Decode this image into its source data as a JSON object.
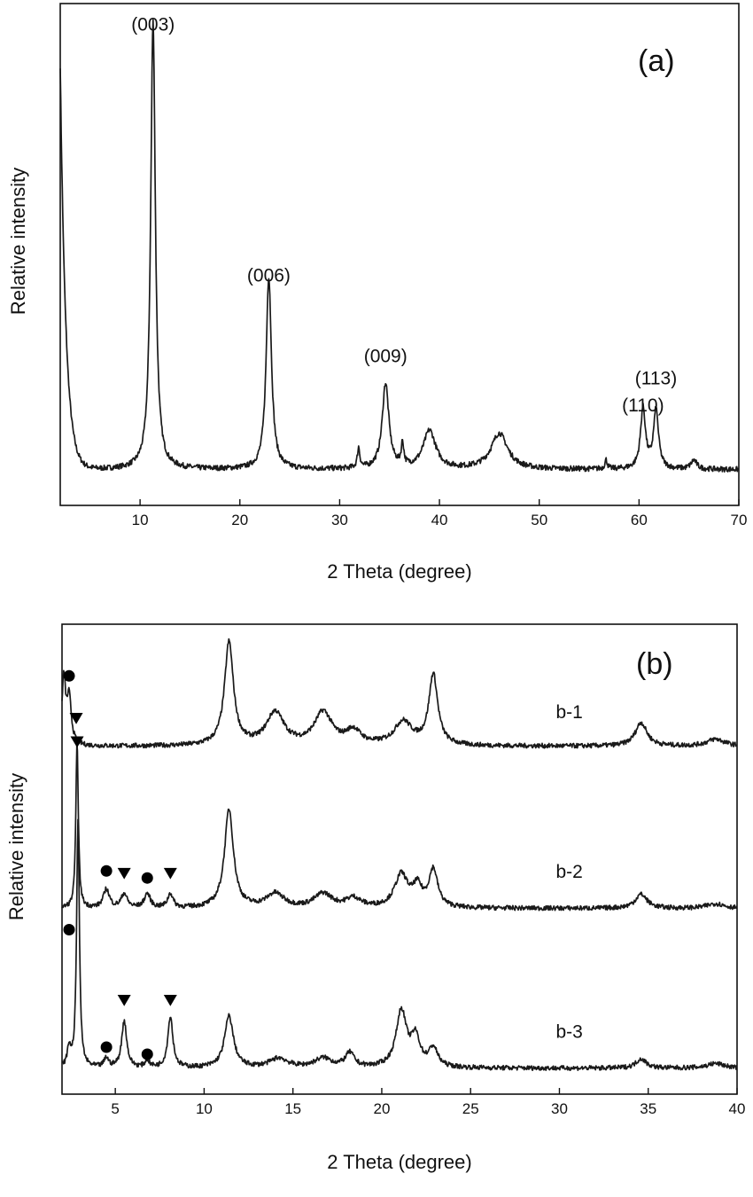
{
  "chart_data": [
    {
      "type": "line",
      "panel_label": "(a)",
      "xlabel": "2 Theta (degree)",
      "ylabel": "Relative intensity",
      "xlim": [
        2,
        70
      ],
      "ylim": [
        0,
        1.12
      ],
      "x_ticks": [
        10,
        20,
        30,
        40,
        50,
        60,
        70
      ],
      "y_ticks_shown": false,
      "series": [
        {
          "baseline": 0.08,
          "low_angle_tail": {
            "amp": 0.9,
            "decay": 0.55
          },
          "peaks": [
            {
              "x": 11.3,
              "y": 1.0,
              "width": 0.28
            },
            {
              "x": 22.9,
              "y": 0.43,
              "width": 0.32
            },
            {
              "x": 31.9,
              "y": 0.045,
              "width": 0.15
            },
            {
              "x": 34.6,
              "y": 0.19,
              "width": 0.4
            },
            {
              "x": 36.3,
              "y": 0.05,
              "width": 0.15
            },
            {
              "x": 39.0,
              "y": 0.085,
              "width": 0.75
            },
            {
              "x": 46.0,
              "y": 0.08,
              "width": 1.0
            },
            {
              "x": 56.7,
              "y": 0.02,
              "width": 0.15
            },
            {
              "x": 60.4,
              "y": 0.135,
              "width": 0.3
            },
            {
              "x": 61.7,
              "y": 0.13,
              "width": 0.3
            },
            {
              "x": 65.5,
              "y": 0.02,
              "width": 0.35
            }
          ]
        }
      ],
      "annotations": [
        {
          "text": "(003)",
          "x": 11.3,
          "y": 1.06
        },
        {
          "text": "(006)",
          "x": 22.9,
          "y": 0.5
        },
        {
          "text": "(009)",
          "x": 34.6,
          "y": 0.32
        },
        {
          "text": "(113)",
          "x": 61.7,
          "y": 0.27
        },
        {
          "text": "(110)",
          "x": 60.4,
          "y": 0.21
        }
      ]
    },
    {
      "type": "line",
      "panel_label": "(b)",
      "xlabel": "2 Theta (degree)",
      "ylabel": "Relative intensity",
      "xlim": [
        2,
        40
      ],
      "ylim": [
        0,
        1
      ],
      "x_ticks": [
        5,
        10,
        15,
        20,
        25,
        30,
        35,
        40
      ],
      "y_ticks_shown": false,
      "series": [
        {
          "name": "b-1",
          "offset": 0.74,
          "peaks": [
            {
              "x": 2.1,
              "y": 0.14,
              "width": 0.12
            },
            {
              "x": 2.4,
              "y": 0.1,
              "width": 0.15
            },
            {
              "x": 11.4,
              "y": 0.22,
              "width": 0.3
            },
            {
              "x": 14.0,
              "y": 0.07,
              "width": 0.6
            },
            {
              "x": 16.7,
              "y": 0.07,
              "width": 0.6
            },
            {
              "x": 18.4,
              "y": 0.03,
              "width": 0.5
            },
            {
              "x": 21.2,
              "y": 0.05,
              "width": 0.6
            },
            {
              "x": 22.9,
              "y": 0.15,
              "width": 0.3
            },
            {
              "x": 34.6,
              "y": 0.05,
              "width": 0.4
            },
            {
              "x": 38.8,
              "y": 0.015,
              "width": 0.6
            }
          ]
        },
        {
          "name": "b-2",
          "offset": 0.395,
          "peaks": [
            {
              "x": 2.85,
              "y": 0.36,
              "width": 0.08
            },
            {
              "x": 4.5,
              "y": 0.04,
              "width": 0.2
            },
            {
              "x": 5.5,
              "y": 0.03,
              "width": 0.2
            },
            {
              "x": 6.8,
              "y": 0.03,
              "width": 0.2
            },
            {
              "x": 8.1,
              "y": 0.03,
              "width": 0.18
            },
            {
              "x": 11.4,
              "y": 0.21,
              "width": 0.3
            },
            {
              "x": 14.0,
              "y": 0.03,
              "width": 0.6
            },
            {
              "x": 16.7,
              "y": 0.03,
              "width": 0.6
            },
            {
              "x": 18.4,
              "y": 0.02,
              "width": 0.5
            },
            {
              "x": 21.1,
              "y": 0.07,
              "width": 0.45
            },
            {
              "x": 22.0,
              "y": 0.04,
              "width": 0.3
            },
            {
              "x": 22.9,
              "y": 0.08,
              "width": 0.3
            },
            {
              "x": 34.6,
              "y": 0.03,
              "width": 0.4
            },
            {
              "x": 38.8,
              "y": 0.01,
              "width": 0.6
            }
          ]
        },
        {
          "name": "b-3",
          "offset": 0.055,
          "peaks": [
            {
              "x": 2.4,
              "y": 0.04,
              "width": 0.12
            },
            {
              "x": 2.9,
              "y": 0.53,
              "width": 0.09
            },
            {
              "x": 4.5,
              "y": 0.02,
              "width": 0.15
            },
            {
              "x": 5.5,
              "y": 0.1,
              "width": 0.17
            },
            {
              "x": 6.8,
              "y": 0.015,
              "width": 0.15
            },
            {
              "x": 8.1,
              "y": 0.11,
              "width": 0.17
            },
            {
              "x": 11.4,
              "y": 0.11,
              "width": 0.3
            },
            {
              "x": 14.2,
              "y": 0.02,
              "width": 0.6
            },
            {
              "x": 16.7,
              "y": 0.02,
              "width": 0.6
            },
            {
              "x": 18.2,
              "y": 0.03,
              "width": 0.3
            },
            {
              "x": 21.1,
              "y": 0.12,
              "width": 0.35
            },
            {
              "x": 21.9,
              "y": 0.06,
              "width": 0.3
            },
            {
              "x": 22.9,
              "y": 0.04,
              "width": 0.3
            },
            {
              "x": 34.6,
              "y": 0.02,
              "width": 0.35
            },
            {
              "x": 38.8,
              "y": 0.01,
              "width": 0.6
            }
          ]
        }
      ],
      "series_labels": [
        {
          "text": "b-1",
          "x": 29.8,
          "y": 0.8
        },
        {
          "text": "b-2",
          "x": 29.8,
          "y": 0.46
        },
        {
          "text": "b-3",
          "x": 29.8,
          "y": 0.12
        }
      ],
      "markers": [
        {
          "shape": "circle",
          "x": 2.4,
          "y": 0.89
        },
        {
          "shape": "triangle",
          "x": 2.8,
          "y": 0.8
        },
        {
          "shape": "triangle",
          "x": 2.85,
          "y": 0.75
        },
        {
          "shape": "circle",
          "x": 4.5,
          "y": 0.475
        },
        {
          "shape": "triangle",
          "x": 5.5,
          "y": 0.47
        },
        {
          "shape": "circle",
          "x": 6.8,
          "y": 0.46
        },
        {
          "shape": "triangle",
          "x": 8.1,
          "y": 0.47
        },
        {
          "shape": "circle",
          "x": 2.4,
          "y": 0.35
        },
        {
          "shape": "triangle",
          "x": 5.5,
          "y": 0.2
        },
        {
          "shape": "triangle",
          "x": 8.1,
          "y": 0.2
        },
        {
          "shape": "circle",
          "x": 4.5,
          "y": 0.1
        },
        {
          "shape": "circle",
          "x": 6.8,
          "y": 0.085
        }
      ]
    }
  ]
}
